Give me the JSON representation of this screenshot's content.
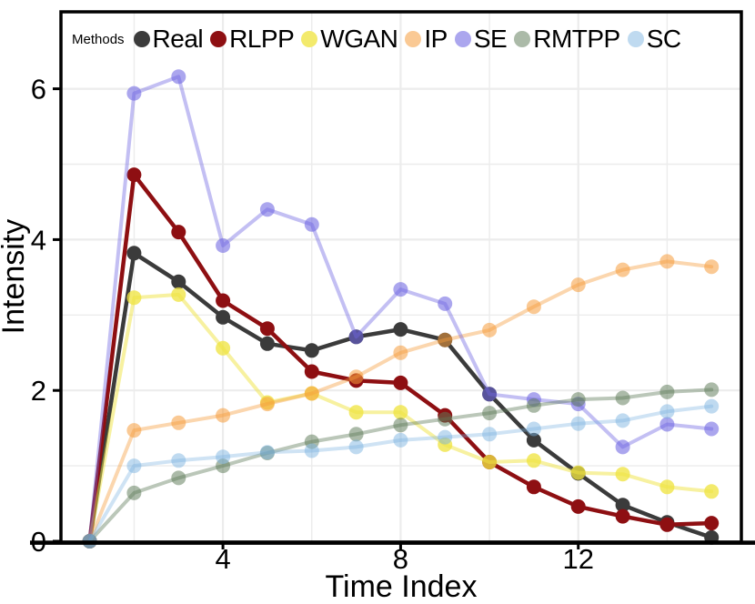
{
  "chart_data": {
    "type": "line",
    "title": "",
    "xlabel": "Time Index",
    "ylabel": "Intensity",
    "legend_title": "Methods",
    "legend_position": "top-inside",
    "grid": true,
    "x": [
      1,
      2,
      3,
      4,
      5,
      6,
      7,
      8,
      9,
      10,
      11,
      12,
      13,
      14,
      15
    ],
    "xlim": [
      1,
      15
    ],
    "ylim": [
      0,
      7
    ],
    "xticks": [
      4,
      8,
      12
    ],
    "xticks_minor": [
      2,
      6,
      10,
      14
    ],
    "yticks": [
      0,
      2,
      4,
      6
    ],
    "yticks_minor": [
      1,
      3,
      5
    ],
    "series": [
      {
        "name": "Real",
        "color": "#3b3b3b",
        "line_alpha": 1,
        "point_alpha": 1,
        "line_width": 4.5,
        "values": [
          0,
          3.82,
          3.44,
          2.97,
          2.62,
          2.53,
          2.71,
          2.81,
          2.67,
          1.95,
          1.34,
          0.9,
          0.48,
          0.25,
          0.05
        ]
      },
      {
        "name": "RLPP",
        "color": "#8e0f12",
        "line_alpha": 1,
        "point_alpha": 1,
        "line_width": 4.5,
        "values": [
          0,
          4.86,
          4.1,
          3.19,
          2.82,
          2.25,
          2.13,
          2.1,
          1.67,
          1.05,
          0.72,
          0.46,
          0.33,
          0.22,
          0.24
        ]
      },
      {
        "name": "WGAN",
        "color": "#f0e442",
        "line_alpha": 0.5,
        "point_alpha": 0.78,
        "line_width": 4,
        "values": [
          0,
          3.23,
          3.27,
          2.56,
          1.84,
          1.96,
          1.71,
          1.71,
          1.28,
          1.05,
          1.07,
          0.91,
          0.89,
          0.72,
          0.66
        ]
      },
      {
        "name": "IP",
        "color": "#f59d3d",
        "line_alpha": 0.42,
        "point_alpha": 0.55,
        "line_width": 4,
        "values": [
          0,
          1.47,
          1.57,
          1.67,
          1.82,
          1.96,
          2.18,
          2.5,
          2.67,
          2.8,
          3.11,
          3.4,
          3.6,
          3.71,
          3.64
        ]
      },
      {
        "name": "SE",
        "color": "#6f66e2",
        "line_alpha": 0.42,
        "point_alpha": 0.58,
        "line_width": 4,
        "values": [
          0,
          5.94,
          6.16,
          3.92,
          4.4,
          4.2,
          2.71,
          3.34,
          3.15,
          1.95,
          1.88,
          1.82,
          1.25,
          1.55,
          1.49
        ]
      },
      {
        "name": "RMTPP",
        "color": "#5d7a58",
        "line_alpha": 0.42,
        "point_alpha": 0.52,
        "line_width": 4,
        "values": [
          0,
          0.64,
          0.84,
          1.0,
          1.17,
          1.32,
          1.42,
          1.54,
          1.62,
          1.7,
          1.8,
          1.88,
          1.9,
          1.98,
          2.01
        ]
      },
      {
        "name": "SC",
        "color": "#7ab2e0",
        "line_alpha": 0.36,
        "point_alpha": 0.48,
        "line_width": 4,
        "values": [
          0,
          1.0,
          1.07,
          1.12,
          1.18,
          1.2,
          1.25,
          1.34,
          1.38,
          1.42,
          1.49,
          1.56,
          1.6,
          1.72,
          1.79
        ]
      }
    ],
    "colors": {
      "grid": "#ececec",
      "panel_border": "#000000",
      "text": "#000000"
    }
  }
}
